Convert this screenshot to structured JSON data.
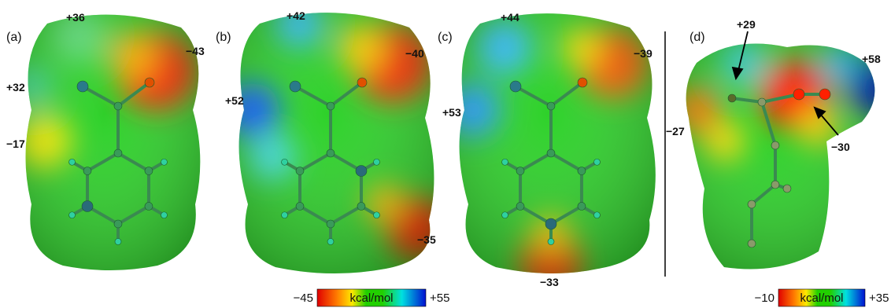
{
  "panels": [
    {
      "label": "(a)",
      "annotations": [
        "+36",
        "−43",
        "+32",
        "−17"
      ]
    },
    {
      "label": "(b)",
      "annotations": [
        "+42",
        "−40",
        "+52",
        "−35"
      ]
    },
    {
      "label": "(c)",
      "annotations": [
        "+44",
        "−39",
        "+53",
        "−33"
      ]
    },
    {
      "label": "(d)",
      "annotations": [
        "+29",
        "+58",
        "−27",
        "−30"
      ]
    }
  ],
  "colorbars": [
    {
      "min": "−45",
      "unit": "kcal/mol",
      "max": "+55"
    },
    {
      "min": "−10",
      "unit": "kcal/mol",
      "max": "+35"
    }
  ]
}
